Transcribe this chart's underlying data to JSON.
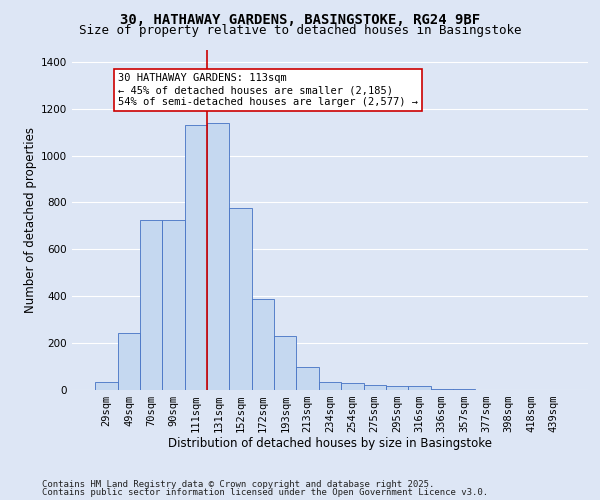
{
  "title_line1": "30, HATHAWAY GARDENS, BASINGSTOKE, RG24 9BF",
  "title_line2": "Size of property relative to detached houses in Basingstoke",
  "xlabel": "Distribution of detached houses by size in Basingstoke",
  "ylabel": "Number of detached properties",
  "categories": [
    "29sqm",
    "49sqm",
    "70sqm",
    "90sqm",
    "111sqm",
    "131sqm",
    "152sqm",
    "172sqm",
    "193sqm",
    "213sqm",
    "234sqm",
    "254sqm",
    "275sqm",
    "295sqm",
    "316sqm",
    "336sqm",
    "357sqm",
    "377sqm",
    "398sqm",
    "418sqm",
    "439sqm"
  ],
  "values": [
    35,
    245,
    725,
    725,
    1130,
    1140,
    775,
    390,
    230,
    100,
    35,
    30,
    20,
    15,
    15,
    5,
    3,
    2,
    1,
    0,
    0
  ],
  "bar_color": "#c5d8f0",
  "bar_edge_color": "#4472c4",
  "vline_x_index": 4.5,
  "vline_color": "#cc0000",
  "annotation_text": "30 HATHAWAY GARDENS: 113sqm\n← 45% of detached houses are smaller (2,185)\n54% of semi-detached houses are larger (2,577) →",
  "annotation_box_color": "#ffffff",
  "annotation_box_edge": "#cc0000",
  "ylim": [
    0,
    1450
  ],
  "yticks": [
    0,
    200,
    400,
    600,
    800,
    1000,
    1200,
    1400
  ],
  "background_color": "#dde6f5",
  "grid_color": "#ffffff",
  "footer_line1": "Contains HM Land Registry data © Crown copyright and database right 2025.",
  "footer_line2": "Contains public sector information licensed under the Open Government Licence v3.0.",
  "title_fontsize": 10,
  "subtitle_fontsize": 9,
  "axis_label_fontsize": 8.5,
  "tick_fontsize": 7.5,
  "annotation_fontsize": 7.5,
  "footer_fontsize": 6.5
}
